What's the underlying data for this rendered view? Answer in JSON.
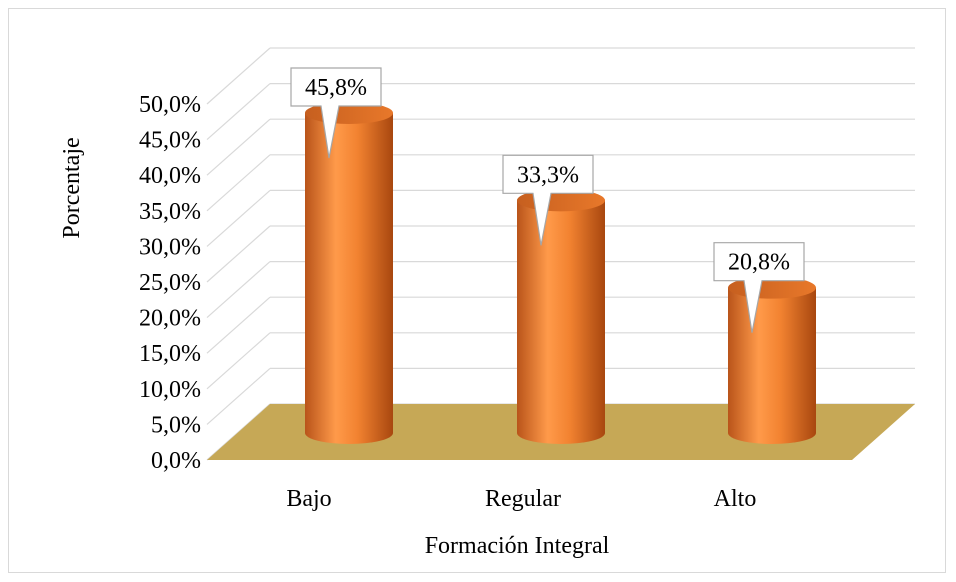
{
  "chart_data": {
    "type": "bar",
    "style": "3d-cylinder",
    "categories": [
      "Bajo",
      "Regular",
      "Alto"
    ],
    "values": [
      45.8,
      33.3,
      20.8
    ],
    "data_labels": [
      "45,8%",
      "33,3%",
      "20,8%"
    ],
    "ylabel": "Porcentaje",
    "xlabel": "Formación Integral",
    "ylim": [
      0,
      50
    ],
    "y_ticks": [
      "0,0%",
      "5,0%",
      "10,0%",
      "15,0%",
      "20,0%",
      "25,0%",
      "30,0%",
      "35,0%",
      "40,0%",
      "45,0%",
      "50,0%"
    ],
    "grid": true,
    "legend": "none",
    "colors": {
      "bar": "#f28230",
      "bar_dark": "#a8470f",
      "floor": "#c6a856",
      "grid": "#d9d9d9"
    }
  }
}
